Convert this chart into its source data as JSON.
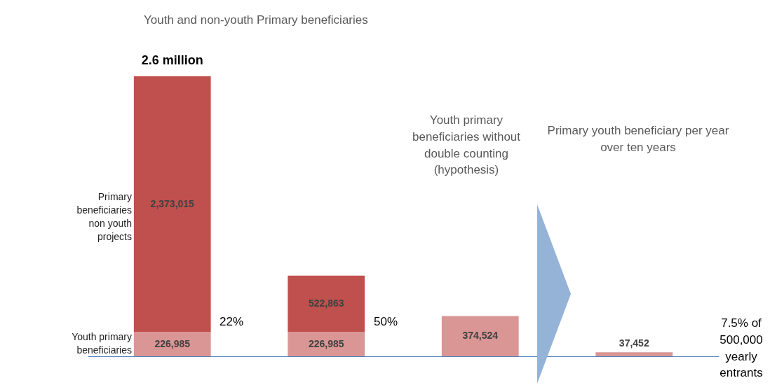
{
  "chart_data": {
    "type": "bar",
    "title": "Youth and non-youth Primary beneficiaries",
    "categories": [
      null,
      null,
      null,
      null
    ],
    "series": [
      {
        "name": "Youth primary beneficiaries",
        "color": "#d99694",
        "values": [
          226985,
          226985,
          374524,
          37452
        ],
        "value_labels": [
          "226,985",
          "226,985",
          "374,524",
          "37,452"
        ]
      },
      {
        "name": "Primary beneficiaries non youth projects",
        "color": "#c0504d",
        "values": [
          2373015,
          522863,
          null,
          null
        ],
        "value_labels": [
          "2,373,015",
          "522,863",
          null,
          null
        ]
      }
    ],
    "stacked": true,
    "totals": [
      "2.6 million",
      null,
      null,
      null
    ],
    "annotations": [
      "22%",
      "50%",
      "Youth primary beneficiaries without double counting (hypothesis)",
      "Primary youth beneficiary per year over ten years",
      "7.5% of 500,000 yearly entrants"
    ]
  }
}
